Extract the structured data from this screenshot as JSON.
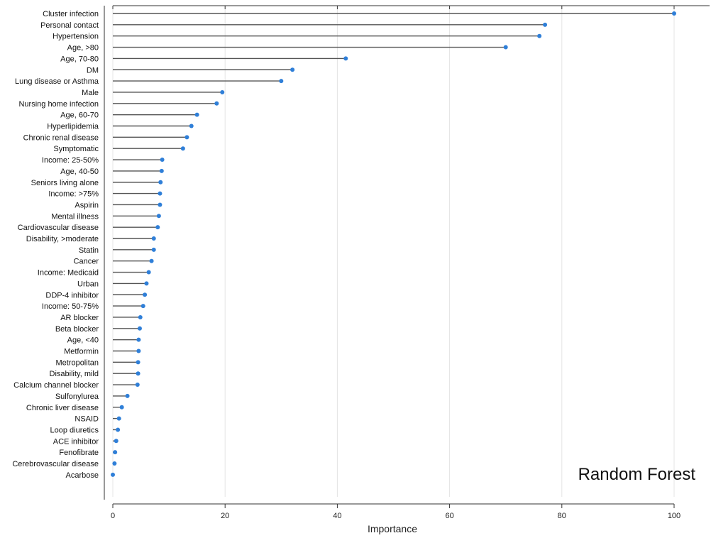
{
  "chart_data": {
    "type": "lollipop",
    "xlabel": "Importance",
    "xlim": [
      0,
      100
    ],
    "x_ticks": [
      0,
      20,
      40,
      60,
      80,
      100
    ],
    "annotation": "Random Forest",
    "point_color": "#2f7fd8",
    "line_color": "#555555",
    "categories": [
      "Cluster infection",
      "Personal contact",
      "Hypertension",
      "Age, >80",
      "Age, 70-80",
      "DM",
      "Lung disease or Asthma",
      "Male",
      "Nursing home infection",
      "Age, 60-70",
      "Hyperlipidemia",
      "Chronic renal disease",
      "Symptomatic",
      "Income: 25-50%",
      "Age, 40-50",
      "Seniors living alone",
      "Income: >75%",
      "Aspirin",
      "Mental illness",
      "Cardiovascular disease",
      "Disability, >moderate",
      "Statin",
      "Cancer",
      "Income: Medicaid",
      "Urban",
      "DDP-4 inhibitor",
      "Income: 50-75%",
      "AR blocker",
      "Beta blocker",
      "Age, <40",
      "Metformin",
      "Metropolitan",
      "Disability, mild",
      "Calcium channel blocker",
      "Sulfonylurea",
      "Chronic liver disease",
      "NSAID",
      "Loop diuretics",
      "ACE inhibitor",
      "Fenofibrate",
      "Cerebrovascular disease",
      "Acarbose"
    ],
    "values": [
      100,
      77,
      76,
      70,
      41.5,
      32,
      30,
      19.5,
      18.5,
      15,
      14,
      13.2,
      12.5,
      8.8,
      8.7,
      8.5,
      8.4,
      8.4,
      8.2,
      8.0,
      7.3,
      7.3,
      6.9,
      6.4,
      6.0,
      5.7,
      5.4,
      4.9,
      4.8,
      4.6,
      4.6,
      4.5,
      4.5,
      4.4,
      2.6,
      1.6,
      1.1,
      0.9,
      0.6,
      0.4,
      0.3,
      0.0
    ]
  }
}
